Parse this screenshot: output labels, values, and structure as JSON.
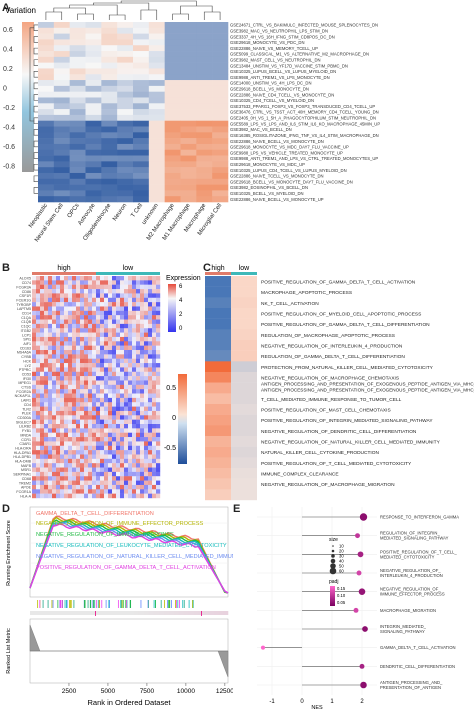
{
  "panel_labels": {
    "a": "A",
    "b": "B",
    "c": "C",
    "d": "D",
    "e": "E"
  },
  "colors": {
    "red": "#e8623e",
    "orange": "#f4a582",
    "white": "#f7f7f7",
    "lightblue": "#92c5de",
    "blue": "#2166ac",
    "darkblue": "#1f3a7a",
    "high": "#e07b6a",
    "low": "#3db8b8",
    "purple": "#3333ee"
  },
  "chart_data": [
    {
      "id": "A",
      "type": "heatmap",
      "title": "",
      "legend_title": "Variation",
      "legend_ticks": [
        "0.6",
        "0.4",
        "0.2",
        "0",
        "-0.2",
        "-0.4",
        "-0.6",
        "-0.8"
      ],
      "columns": [
        "Neoplastic",
        "Neural Stem Cell",
        "OPCs",
        "Astrocyte",
        "Oligodendrocyte",
        "Neuron",
        "T Cell",
        "unknown",
        "M2 Macrophage",
        "M1 Macrophage",
        "Macrophage",
        "Microglial Cell"
      ],
      "rows": [
        "GSE24671_CTRL_VS_BAKIMULC_INFECTED_MOUSE_SPLENOCYTES_DN",
        "GSE3982_MAC_VS_NEUTROPHIL_LPS_STIM_DN",
        "GSE3337_4H_VS_16H_IFNG_STIM_CD8POS_DC_DN",
        "GSE29618_MONOCYTE_VS_PDC_DN",
        "GSE22886_NAIVE_VS_MEMORY_TCELL_UP",
        "GSE5099_CLASSICAL_M1_VS_ALTERNATIVE_M2_MACROPHAGE_DN",
        "GSE3982_MAST_CELL_VS_NEUTROPHIL_DN",
        "GSE13484_UNSTIM_VS_YF17D_VACCINE_STIM_PBMC_DN",
        "GSE10325_LUPUS_BCELL_VS_LUPUS_MYELOID_DN",
        "GSE9988_ANTI_TREM1_VS_LPS_MONOCYTE_DN",
        "GSE14000_UNSTIM_VS_4H_LPS_DC_DN",
        "GSE29618_BCELL_VS_MONOCYTE_DN",
        "GSE22886_NAIVE_CD4_TCELL_VS_MONOCYTE_DN",
        "GSE10325_CD4_TCELL_VS_MYELOID_DN",
        "GSE37533_PPARG1_FOXP3_VS_FOXP3_TRANSDUCED_CD4_TCELL_UP",
        "GSE36476_CTRL_VS_TSST_ACT_40H_MEMORY_CD4_TCELL_YOUNG_DN",
        "GSE2405_0H_VS_1_5H_A_PHAGOCYTOPHILUM_STIM_NEUTROPHIL_DN",
        "GSE5589_LPS_VS_LPS_AND_IL6_STIM_IL6_KO_MACROPHAGE_45MIN_UP",
        "GSE3982_MAC_VS_BCELL_DN",
        "GSE16385_ROSIGLITAZONE_IFNG_TNF_VS_IL4_STIM_MACROPHAGE_DN",
        "GSE22886_NAIVE_BCELL_VS_MONOCYTE_DN",
        "GSE29618_MONOCYTE_VS_MDC_DAY7_FLU_VACCINE_UP",
        "GSE9988_LPS_VS_VEHICLE_TREATED_MONOCYTE_UP",
        "GSE9988_ANTI_TREM1_AND_LPS_VS_CTRL_TREATED_MONOCYTES_UP",
        "GSE29618_MONOCYTE_VS_MDC_UP",
        "GSE10325_LUPUS_CD4_TCELL_VS_LUPUS_MYELOID_DN",
        "GSE22886_NAIVE_TCELL_VS_MONOCYTE_DN",
        "GSE29618_BCELL_VS_MONOCYTE_DAY7_FLU_VACCINE_DN",
        "GSE3982_EOSINOPHIL_VS_BCELL_DN",
        "GSE10325_BCELL_VS_MYELOID_DN",
        "GSE22886_NAIVE_BCELL_VS_MONOCYTE_UP"
      ]
    },
    {
      "id": "B",
      "type": "heatmap",
      "legend_title": "Expression",
      "legend_ticks": [
        "6",
        "4",
        "2",
        "0"
      ],
      "groups": [
        "high",
        "low"
      ],
      "row_labels": [
        "ALOX5",
        "CD74",
        "FCGR3A",
        "CD86",
        "CSF1R",
        "FCER1G",
        "TYROBP",
        "LAPTM5",
        "CD14",
        "C1QA",
        "C1QB",
        "C1QC",
        "ITGB2",
        "LCP1",
        "SPI1",
        "AIF1",
        "CD163",
        "MS4A6A",
        "CYBB",
        "HCK",
        "LYZ",
        "PTPRC",
        "CD53",
        "IFI30",
        "MPEG1",
        "CTSS",
        "FCGR2A",
        "NCKAP1L",
        "LAIR1",
        "CD4",
        "TLR2",
        "PLEK",
        "CD300A",
        "SIGLEC7",
        "LILRB2",
        "FYB1",
        "MNDA",
        "CCR1",
        "C3AR1",
        "HLA-DRA",
        "HLA-DPA1",
        "HLA-DPB1",
        "HLA-DMB",
        "MAFB",
        "MSR1",
        "SERPINA1",
        "CD68",
        "TREM2",
        "APOE",
        "FCGR1A",
        "HLA-A"
      ]
    },
    {
      "id": "C",
      "type": "heatmap",
      "groups": [
        "high",
        "low"
      ],
      "legend_ticks": [
        "0.5",
        "0",
        "-0.5"
      ],
      "rows": [
        "POSITIVE_REGULATION_OF_GAMMA_DELTA_T_CELL_ACTIVATION",
        "MACROPHAGE_APOPTOTIC_PROCESS",
        "NK_T_CELL_ACTIVATION",
        "POSITIVE_REGULATION_OF_MYELOID_CELL_APOPTOTIC_PROCESS",
        "POSITIVE_REGULATION_OF_GAMMA_DELTA_T_CELL_DIFFERENTIATION",
        "REGULATION_OF_MACROPHAGE_APOPTOTIC_PROCESS",
        "NEGATIVE_REGULATION_OF_INTERLEUKIN_4_PRODUCTION",
        "REGULATION_OF_GAMMA_DELTA_T_CELL_DIFFERENTIATION",
        "PROTECTION_FROM_NATURAL_KILLER_CELL_MEDIATED_CYTOTOXICITY",
        "NEGATIVE_REGULATION_OF_MACROPHAGE_CHEMOTAXIS",
        "ANTIGEN_PROCESSING_AND_PRESENTATION_OF_EXOGENOUS_PEPTIDE_ANTIGEN_VIA_MHC_CLASS_I_TAP_INDEPENDENT",
        "ANTIGEN_PROCESSING_AND_PRESENTATION_OF_EXOGENOUS_PEPTIDE_ANTIGEN_VIA_MHC_CLASS_I",
        "T_CELL_MEDIATED_IMMUNE_RESPONSE_TO_TUMOR_CELL",
        "POSITIVE_REGULATION_OF_MAST_CELL_CHEMOTAXIS",
        "POSITIVE_REGULATION_OF_INTEGRIN_MEDIATED_SIGNALING_PATHWAY",
        "NEGATIVE_REGULATION_OF_DENDRITIC_CELL_DIFFERENTIATION",
        "NEGATIVE_REGULATION_OF_NATURAL_KILLER_CELL_MEDIATED_IMMUNITY",
        "NATURAL_KILLER_CELL_CYTOKINE_PRODUCTION",
        "POSITIVE_REGULATION_OF_T_CELL_MEDIATED_CYTOTOXICITY",
        "IMMUNE_COMPLEX_CLEARANCE",
        "NEGATIVE_REGULATION_OF_MACROPHAGE_MIGRATION"
      ],
      "values_high": [
        -0.6,
        -0.6,
        -0.55,
        -0.6,
        -0.6,
        -0.55,
        -0.55,
        -0.5,
        0.7,
        0.55,
        0.35,
        0.25,
        0.35,
        0.4,
        0.45,
        0.3,
        0.35,
        0.3,
        0.25,
        0.2,
        0.15
      ],
      "values_low": [
        0.1,
        0.1,
        0.12,
        0.1,
        0.1,
        0.12,
        0.15,
        0.15,
        -0.15,
        -0.1,
        -0.1,
        -0.1,
        -0.08,
        -0.1,
        -0.1,
        -0.08,
        -0.1,
        -0.08,
        -0.06,
        -0.05,
        -0.05
      ]
    },
    {
      "id": "D",
      "type": "line",
      "ylabel": "Running Enrichment Score",
      "ylabel2": "Ranked List Metric",
      "xlabel": "Rank in Ordered Dataset",
      "x_ticks": [
        2500,
        5000,
        7500,
        10000,
        12500
      ],
      "xlim": [
        0,
        12700
      ],
      "series": [
        {
          "name": "GAMMA_DELTA_T_CELL_DIFFERENTIATION",
          "color": "#f0766a"
        },
        {
          "name": "NEGATIVE_REGULATION_OF_IMMUNE_EFFECTOR_PROCESS",
          "color": "#b3b300"
        },
        {
          "name": "NEGATIVE_REGULATION_OF_IMMUNE_RESPONSE",
          "color": "#22bb44"
        },
        {
          "name": "NEGATIVE_REGULATION_OF_LEUKOCYTE_MEDIATED_CYTOTOXICITY",
          "color": "#16bcbc"
        },
        {
          "name": "NEGATIVE_REGULATION_OF_NATURAL_KILLER_CELL_MEDIATED_IMMUNITY",
          "color": "#6c8cf0"
        },
        {
          "name": "POSITIVE_REGULATION_OF_GAMMA_DELTA_T_CELL_ACTIVATION",
          "color": "#e040e0"
        }
      ]
    },
    {
      "id": "E",
      "type": "scatter",
      "xlabel": "NES",
      "x_ticks": [
        -1,
        0,
        1,
        2
      ],
      "xlim": [
        -1.5,
        2.5
      ],
      "legend": {
        "size_title": "size",
        "size_values": [
          "10",
          "20",
          "30",
          "40",
          "50",
          "60"
        ],
        "color_title": "padj",
        "color_values": [
          "0.15",
          "0.10",
          "0.05"
        ]
      },
      "categories": [
        "RESPONSE_TO_INTERFERON_GAMMA",
        "REGULATION_OF_INTEGRIN_MEDIATED_SIGNALING_PATHWAY",
        "POSITIVE_REGULATION_OF_T_CELL_MEDIATED_CYTOTOXICITY",
        "NEGATIVE_REGULATION_OF_INTERLEUKIN_4_PRODUCTION",
        "NEGATIVE_REGULATION_OF_IMMUNE_EFFECTOR_PROCESS",
        "MACROPHAGE_MIGRATION",
        "INTEGRIN_MEDIATED_SIGNALING_PATHWAY",
        "GAMMA_DELTA_T_CELL_ACTIVATION",
        "DENDRITIC_CELL_DIFFERENTIATION",
        "ANTIGEN_PROCESSING_AND_PRESENTATION_OF_ANTIGEN"
      ],
      "display_labels": [
        "RESPONSE_TO_INTERFERON_GAMMA",
        "REGULATION_OF_INTEGRIN_\nMEDIATED_SIGNALING_PATHWAY",
        "POSITIVE_REGULATION_OF_T_CELL_\nMEDIATED_CYTOTOXICITY",
        "NEGATIVE_REGULATION_OF_\nINTERLEUKIN_4_PRODUCTION",
        "NEGATIVE_REGULATION_OF_\nIMMUNE_EFFECTOR_PROCESS",
        "MACROPHAGE_MIGRATION",
        "INTEGRIN_MEDIATED_\nSIGNALING_PATHWAY",
        "GAMMA_DELTA_T_CELL_ACTIVATION",
        "DENDRITIC_CELL_DIFFERENTIATION",
        "ANTIGEN_PROCESSING_AND_\nPRESENTATION_OF_ANTIGEN"
      ],
      "values": [
        2.05,
        1.85,
        1.95,
        1.9,
        2.0,
        1.8,
        2.1,
        -1.3,
        2.0,
        2.05
      ],
      "sizes": [
        30,
        15,
        20,
        15,
        25,
        15,
        20,
        10,
        15,
        25
      ],
      "padj": [
        0.02,
        0.08,
        0.05,
        0.1,
        0.03,
        0.1,
        0.02,
        0.15,
        0.05,
        0.02
      ]
    }
  ]
}
